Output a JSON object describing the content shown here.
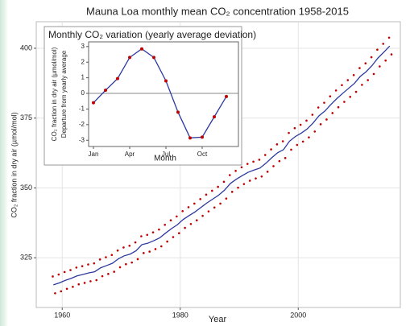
{
  "chart_data": [
    {
      "type": "line",
      "title": "Mauna Loa monthly mean CO₂ concentration 1958-2015",
      "x_label": "Year",
      "y_label": "CO₂ fraction in dry air (µmol/mol)",
      "xlim": [
        1955.6,
        2017.3
      ],
      "ylim": [
        307.2,
        409.5
      ],
      "xticks": [
        1960,
        1980,
        2000
      ],
      "yticks": [
        325,
        350,
        375,
        400
      ],
      "grid": true,
      "series": [
        {
          "style": "points",
          "color": "#c00000",
          "x": [
            1958.4,
            1958.8,
            1959.4,
            1959.8,
            1960.4,
            1960.8,
            1961.4,
            1961.8,
            1962.4,
            1962.8,
            1963.4,
            1963.8,
            1964.4,
            1964.8,
            1965.4,
            1965.8,
            1966.4,
            1966.8,
            1967.4,
            1967.8,
            1968.4,
            1968.8,
            1969.4,
            1969.8,
            1970.4,
            1970.8,
            1971.4,
            1971.8,
            1972.4,
            1972.8,
            1973.4,
            1973.8,
            1974.4,
            1974.8,
            1975.4,
            1975.8,
            1976.4,
            1976.8,
            1977.4,
            1977.8,
            1978.4,
            1978.8,
            1979.4,
            1979.8,
            1980.4,
            1980.8,
            1981.4,
            1981.8,
            1982.4,
            1982.8,
            1983.4,
            1983.8,
            1984.4,
            1984.8,
            1985.4,
            1985.8,
            1986.4,
            1986.8,
            1987.4,
            1987.8,
            1988.4,
            1988.8,
            1989.4,
            1989.8,
            1990.4,
            1990.8,
            1991.4,
            1991.8,
            1992.4,
            1992.8,
            1993.4,
            1993.8,
            1994.4,
            1994.8,
            1995.4,
            1995.8,
            1996.4,
            1996.8,
            1997.4,
            1997.8,
            1998.4,
            1998.8,
            1999.4,
            1999.8,
            2000.4,
            2000.8,
            2001.4,
            2001.8,
            2002.4,
            2002.8,
            2003.4,
            2003.8,
            2004.4,
            2004.8,
            2005.4,
            2005.8,
            2006.4,
            2006.8,
            2007.4,
            2007.8,
            2008.4,
            2008.8,
            2009.4,
            2009.8,
            2010.4,
            2010.8,
            2011.4,
            2011.8,
            2012.4,
            2012.8,
            2013.4,
            2013.8,
            2014.4,
            2014.8,
            2015.4,
            2015.8
          ],
          "values": [
            318.3,
            312.3,
            319.0,
            313.0,
            319.9,
            313.9,
            320.6,
            314.6,
            321.5,
            315.5,
            322.0,
            316.0,
            322.6,
            316.6,
            323.0,
            317.0,
            324.4,
            318.4,
            325.2,
            319.2,
            326.0,
            320.0,
            327.6,
            321.6,
            328.7,
            322.7,
            329.3,
            323.3,
            330.5,
            324.5,
            332.7,
            326.7,
            333.2,
            327.2,
            334.1,
            328.1,
            335.1,
            329.1,
            336.8,
            330.8,
            338.4,
            332.4,
            339.8,
            333.8,
            341.7,
            335.7,
            343.1,
            337.1,
            344.4,
            338.4,
            346.0,
            340.0,
            347.6,
            341.6,
            349.0,
            343.0,
            350.4,
            344.4,
            352.2,
            346.2,
            354.6,
            348.6,
            356.1,
            350.1,
            357.4,
            351.4,
            358.6,
            352.6,
            359.4,
            353.4,
            360.1,
            354.1,
            361.8,
            355.8,
            363.8,
            357.8,
            365.6,
            359.6,
            366.7,
            360.7,
            369.7,
            363.7,
            371.4,
            365.4,
            372.6,
            366.6,
            374.1,
            368.1,
            376.2,
            370.2,
            378.8,
            372.8,
            380.5,
            374.5,
            382.8,
            376.8,
            384.9,
            378.9,
            386.8,
            380.8,
            388.6,
            382.6,
            390.4,
            384.4,
            392.9,
            386.9,
            394.6,
            388.6,
            396.8,
            390.8,
            399.5,
            393.5,
            401.6,
            395.6,
            403.8,
            397.8
          ]
        },
        {
          "style": "line",
          "color": "#2b3a9e",
          "x": [
            1958.5,
            1959.5,
            1960.5,
            1961.5,
            1962.5,
            1963.5,
            1964.5,
            1965.5,
            1966.5,
            1967.5,
            1968.5,
            1969.5,
            1970.5,
            1971.5,
            1972.5,
            1973.5,
            1974.5,
            1975.5,
            1976.5,
            1977.5,
            1978.5,
            1979.5,
            1980.5,
            1981.5,
            1982.5,
            1983.5,
            1984.5,
            1985.5,
            1986.5,
            1987.5,
            1988.5,
            1989.5,
            1990.5,
            1991.5,
            1992.5,
            1993.5,
            1994.5,
            1995.5,
            1996.5,
            1997.5,
            1998.5,
            1999.5,
            2000.5,
            2001.5,
            2002.5,
            2003.5,
            2004.5,
            2005.5,
            2006.5,
            2007.5,
            2008.5,
            2009.5,
            2010.5,
            2011.5,
            2012.5,
            2013.5,
            2014.5,
            2015.5
          ],
          "values": [
            315.3,
            316.0,
            316.9,
            317.6,
            318.5,
            319.0,
            319.6,
            320.0,
            321.4,
            322.2,
            323.0,
            324.6,
            325.7,
            326.3,
            327.5,
            329.7,
            330.2,
            331.1,
            332.1,
            333.8,
            335.4,
            336.8,
            338.7,
            340.1,
            341.4,
            343.0,
            344.6,
            346.0,
            347.4,
            349.2,
            351.6,
            353.1,
            354.4,
            355.6,
            356.4,
            357.1,
            358.8,
            360.8,
            362.6,
            363.7,
            366.7,
            368.4,
            369.6,
            371.1,
            373.2,
            375.8,
            377.5,
            379.8,
            381.9,
            383.8,
            385.6,
            387.4,
            389.9,
            391.6,
            393.8,
            396.5,
            398.6,
            400.8
          ]
        }
      ]
    },
    {
      "type": "line",
      "title": "Monthly CO₂ variation (yearly average deviation)",
      "x_label": "Month",
      "y_label": [
        "CO₂ fraction in dry air (µmol/mol)",
        "Departure from yearly average"
      ],
      "xlim": [
        0.6,
        13
      ],
      "ylim": [
        -3.4,
        3.3
      ],
      "xticks": [
        {
          "value": 1,
          "label": "Jan"
        },
        {
          "value": 4,
          "label": "Apr"
        },
        {
          "value": 7,
          "label": "Jul"
        },
        {
          "value": 10,
          "label": "Oct"
        }
      ],
      "yticks": [
        -3,
        -2,
        -1,
        0,
        1,
        2,
        3
      ],
      "grid": false,
      "reference_line": 0,
      "series": [
        {
          "style": "line",
          "color": "#2b3a9e",
          "marker_color": "#c00000",
          "markers": true,
          "x": [
            1,
            2,
            3,
            4,
            5,
            6,
            7,
            8,
            9,
            10,
            11,
            12
          ],
          "values": [
            -0.6,
            0.2,
            0.95,
            2.3,
            2.85,
            2.3,
            0.8,
            -1.2,
            -2.85,
            -2.8,
            -1.5,
            -0.2
          ]
        }
      ]
    }
  ]
}
